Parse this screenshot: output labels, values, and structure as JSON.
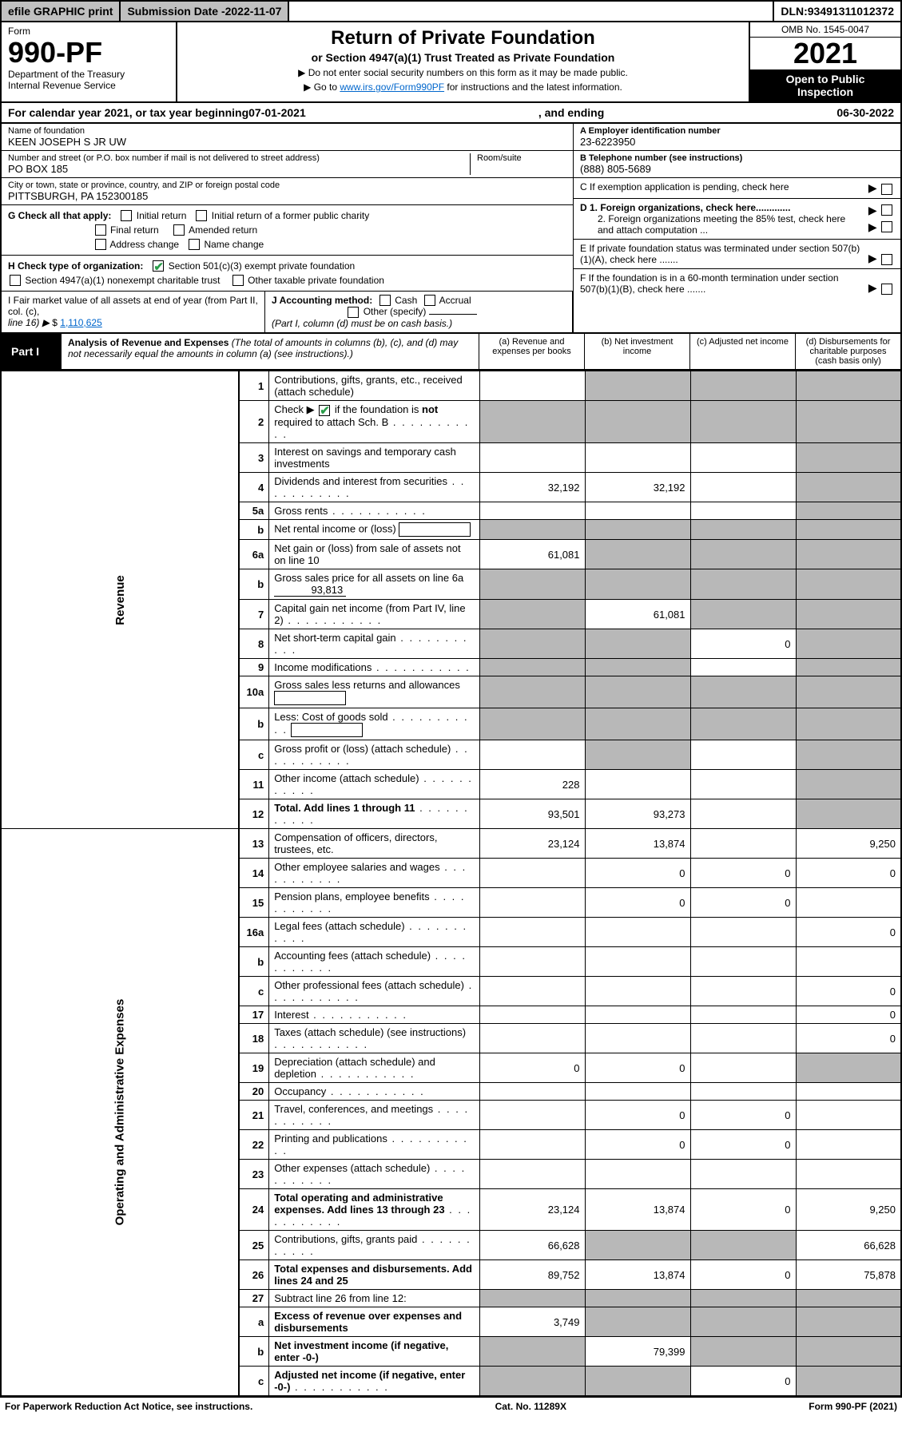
{
  "topbar": {
    "efile": "efile GRAPHIC print",
    "subdate_label": "Submission Date - ",
    "subdate_value": "2022-11-07",
    "dln_label": "DLN: ",
    "dln_value": "93491311012372"
  },
  "header": {
    "form_label": "Form",
    "form_num": "990-PF",
    "dept1": "Department of the Treasury",
    "dept2": "Internal Revenue Service",
    "title": "Return of Private Foundation",
    "subtitle": "or Section 4947(a)(1) Trust Treated as Private Foundation",
    "note1_pre": "▶ Do not enter social security numbers on this form as it may be made public.",
    "note2_pre": "▶ Go to ",
    "note2_link": "www.irs.gov/Form990PF",
    "note2_post": " for instructions and the latest information.",
    "omb": "OMB No. 1545-0047",
    "year": "2021",
    "open1": "Open to Public",
    "open2": "Inspection"
  },
  "calendar": {
    "lead": "For calendar year 2021, or tax year beginning ",
    "begin": "07-01-2021",
    "mid": ", and ending ",
    "end": "06-30-2022"
  },
  "entity": {
    "name_label": "Name of foundation",
    "name": "KEEN JOSEPH S JR UW",
    "addr_label": "Number and street (or P.O. box number if mail is not delivered to street address)",
    "addr": "PO BOX 185",
    "room_label": "Room/suite",
    "room": "",
    "city_label": "City or town, state or province, country, and ZIP or foreign postal code",
    "city": "PITTSBURGH, PA  152300185",
    "ein_label": "A Employer identification number",
    "ein": "23-6223950",
    "phone_label": "B Telephone number (see instructions)",
    "phone": "(888) 805-5689",
    "c_label": "C If exemption application is pending, check here",
    "d1_label": "D 1. Foreign organizations, check here.............",
    "d2_label": "2. Foreign organizations meeting the 85% test, check here and attach computation ...",
    "e_label": "E  If private foundation status was terminated under section 507(b)(1)(A), check here .......",
    "f_label": "F  If the foundation is in a 60-month termination under section 507(b)(1)(B), check here ......."
  },
  "g": {
    "label": "G Check all that apply:",
    "opts": [
      "Initial return",
      "Initial return of a former public charity",
      "Final return",
      "Amended return",
      "Address change",
      "Name change"
    ]
  },
  "h": {
    "label": "H Check type of organization:",
    "opt1": "Section 501(c)(3) exempt private foundation",
    "opt2": "Section 4947(a)(1) nonexempt charitable trust",
    "opt3": "Other taxable private foundation"
  },
  "i": {
    "label": "I Fair market value of all assets at end of year (from Part II, col. (c),",
    "line_ref": "line 16) ▶",
    "amount_prefix": "$ ",
    "amount": "1,110,625"
  },
  "j": {
    "label": "J Accounting method:",
    "cash": "Cash",
    "accrual": "Accrual",
    "other": "Other (specify)",
    "note": "(Part I, column (d) must be on cash basis.)"
  },
  "part1": {
    "badge": "Part I",
    "title": "Analysis of Revenue and Expenses",
    "subtitle": " (The total of amounts in columns (b), (c), and (d) may not necessarily equal the amounts in column (a) (see instructions).)",
    "col_a": "(a) Revenue and expenses per books",
    "col_b": "(b) Net investment income",
    "col_c": "(c) Adjusted net income",
    "col_d": "(d) Disbursements for charitable purposes (cash basis only)"
  },
  "sidelabels": {
    "revenue": "Revenue",
    "opex": "Operating and Administrative Expenses"
  },
  "rows": [
    {
      "n": "1",
      "desc": "Contributions, gifts, grants, etc., received (attach schedule)",
      "a": "",
      "b": "grey",
      "c": "grey",
      "d": "grey"
    },
    {
      "n": "2",
      "desc": "Check ▶  ✔  if the foundation is not required to attach Sch. B",
      "dots": true,
      "a": "grey",
      "b": "grey",
      "c": "grey",
      "d": "grey",
      "check": true
    },
    {
      "n": "3",
      "desc": "Interest on savings and temporary cash investments",
      "a": "",
      "b": "",
      "c": "",
      "d": "grey"
    },
    {
      "n": "4",
      "desc": "Dividends and interest from securities",
      "dots": true,
      "a": "32,192",
      "b": "32,192",
      "c": "",
      "d": "grey"
    },
    {
      "n": "5a",
      "desc": "Gross rents",
      "dots": true,
      "a": "",
      "b": "",
      "c": "",
      "d": "grey"
    },
    {
      "n": "b",
      "desc": "Net rental income or (loss)",
      "inlinebox": true,
      "a": "grey",
      "b": "grey",
      "c": "grey",
      "d": "grey"
    },
    {
      "n": "6a",
      "desc": "Net gain or (loss) from sale of assets not on line 10",
      "a": "61,081",
      "b": "grey",
      "c": "grey",
      "d": "grey"
    },
    {
      "n": "b",
      "desc": "Gross sales price for all assets on line 6a",
      "inline": "93,813",
      "a": "grey",
      "b": "grey",
      "c": "grey",
      "d": "grey"
    },
    {
      "n": "7",
      "desc": "Capital gain net income (from Part IV, line 2)",
      "dots": true,
      "a": "grey",
      "b": "61,081",
      "c": "grey",
      "d": "grey"
    },
    {
      "n": "8",
      "desc": "Net short-term capital gain",
      "dots": true,
      "a": "grey",
      "b": "grey",
      "c": "0",
      "d": "grey"
    },
    {
      "n": "9",
      "desc": "Income modifications",
      "dots": true,
      "a": "grey",
      "b": "grey",
      "c": "",
      "d": "grey"
    },
    {
      "n": "10a",
      "desc": "Gross sales less returns and allowances",
      "inlinebox": true,
      "a": "grey",
      "b": "grey",
      "c": "grey",
      "d": "grey"
    },
    {
      "n": "b",
      "desc": "Less: Cost of goods sold",
      "dots": true,
      "inlinebox": true,
      "a": "grey",
      "b": "grey",
      "c": "grey",
      "d": "grey"
    },
    {
      "n": "c",
      "desc": "Gross profit or (loss) (attach schedule)",
      "dots": true,
      "a": "",
      "b": "grey",
      "c": "",
      "d": "grey"
    },
    {
      "n": "11",
      "desc": "Other income (attach schedule)",
      "dots": true,
      "a": "228",
      "b": "",
      "c": "",
      "d": "grey"
    },
    {
      "n": "12",
      "desc": "Total. Add lines 1 through 11",
      "dots": true,
      "bold": true,
      "a": "93,501",
      "b": "93,273",
      "c": "",
      "d": "grey"
    },
    {
      "n": "13",
      "desc": "Compensation of officers, directors, trustees, etc.",
      "a": "23,124",
      "b": "13,874",
      "c": "",
      "d": "9,250"
    },
    {
      "n": "14",
      "desc": "Other employee salaries and wages",
      "dots": true,
      "a": "",
      "b": "0",
      "c": "0",
      "d": "0"
    },
    {
      "n": "15",
      "desc": "Pension plans, employee benefits",
      "dots": true,
      "a": "",
      "b": "0",
      "c": "0",
      "d": ""
    },
    {
      "n": "16a",
      "desc": "Legal fees (attach schedule)",
      "dots": true,
      "a": "",
      "b": "",
      "c": "",
      "d": "0"
    },
    {
      "n": "b",
      "desc": "Accounting fees (attach schedule)",
      "dots": true,
      "a": "",
      "b": "",
      "c": "",
      "d": ""
    },
    {
      "n": "c",
      "desc": "Other professional fees (attach schedule)",
      "dots": true,
      "a": "",
      "b": "",
      "c": "",
      "d": "0"
    },
    {
      "n": "17",
      "desc": "Interest",
      "dots": true,
      "a": "",
      "b": "",
      "c": "",
      "d": "0"
    },
    {
      "n": "18",
      "desc": "Taxes (attach schedule) (see instructions)",
      "dots": true,
      "a": "",
      "b": "",
      "c": "",
      "d": "0"
    },
    {
      "n": "19",
      "desc": "Depreciation (attach schedule) and depletion",
      "dots": true,
      "a": "0",
      "b": "0",
      "c": "",
      "d": "grey"
    },
    {
      "n": "20",
      "desc": "Occupancy",
      "dots": true,
      "a": "",
      "b": "",
      "c": "",
      "d": ""
    },
    {
      "n": "21",
      "desc": "Travel, conferences, and meetings",
      "dots": true,
      "a": "",
      "b": "0",
      "c": "0",
      "d": ""
    },
    {
      "n": "22",
      "desc": "Printing and publications",
      "dots": true,
      "a": "",
      "b": "0",
      "c": "0",
      "d": ""
    },
    {
      "n": "23",
      "desc": "Other expenses (attach schedule)",
      "dots": true,
      "a": "",
      "b": "",
      "c": "",
      "d": ""
    },
    {
      "n": "24",
      "desc": "Total operating and administrative expenses. Add lines 13 through 23",
      "dots": true,
      "bold": true,
      "a": "23,124",
      "b": "13,874",
      "c": "0",
      "d": "9,250"
    },
    {
      "n": "25",
      "desc": "Contributions, gifts, grants paid",
      "dots": true,
      "a": "66,628",
      "b": "grey",
      "c": "grey",
      "d": "66,628"
    },
    {
      "n": "26",
      "desc": "Total expenses and disbursements. Add lines 24 and 25",
      "bold": true,
      "a": "89,752",
      "b": "13,874",
      "c": "0",
      "d": "75,878"
    },
    {
      "n": "27",
      "desc": "Subtract line 26 from line 12:",
      "a": "grey",
      "b": "grey",
      "c": "grey",
      "d": "grey"
    },
    {
      "n": "a",
      "desc": "Excess of revenue over expenses and disbursements",
      "bold": true,
      "a": "3,749",
      "b": "grey",
      "c": "grey",
      "d": "grey"
    },
    {
      "n": "b",
      "desc": "Net investment income (if negative, enter -0-)",
      "bold": true,
      "a": "grey",
      "b": "79,399",
      "c": "grey",
      "d": "grey"
    },
    {
      "n": "c",
      "desc": "Adjusted net income (if negative, enter -0-)",
      "dots": true,
      "bold": true,
      "a": "grey",
      "b": "grey",
      "c": "0",
      "d": "grey"
    }
  ],
  "footer": {
    "left": "For Paperwork Reduction Act Notice, see instructions.",
    "mid": "Cat. No. 11289X",
    "right": "Form 990-PF (2021)"
  },
  "colors": {
    "grey_cell": "#b8b8b8",
    "link": "#0066cc",
    "check_green": "#2a9d4a",
    "black": "#000000",
    "button_grey": "#c0c0c0"
  }
}
